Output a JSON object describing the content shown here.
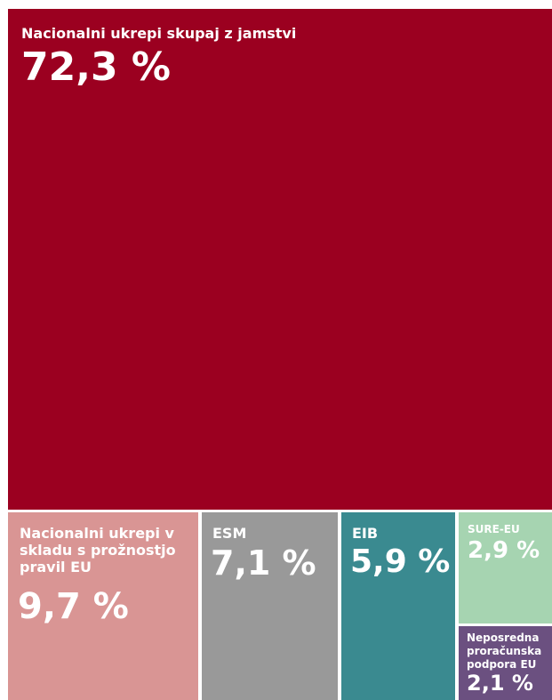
{
  "chart_data": {
    "type": "treemap",
    "items": [
      {
        "name": "Nacionalni ukrepi skupaj z jamstvi",
        "label": "72,3 %",
        "value": 72.3,
        "color": "#9b0020"
      },
      {
        "name": "Nacionalni ukrepi v\nskladu s prožnostjo\npravil EU",
        "label": "9,7 %",
        "value": 9.7,
        "color": "#d99594"
      },
      {
        "name": "ESM",
        "label": "7,1 %",
        "value": 7.1,
        "color": "#999999"
      },
      {
        "name": "EIB",
        "label": "5,9 %",
        "value": 5.9,
        "color": "#3a8a90"
      },
      {
        "name": "SURE-EU",
        "label": "2,9 %",
        "value": 2.9,
        "color": "#a6d4b1"
      },
      {
        "name": "Neposredna\nproračunska\npodpora EU",
        "label": "2,1 %",
        "value": 2.1,
        "color": "#6b5080"
      }
    ]
  }
}
